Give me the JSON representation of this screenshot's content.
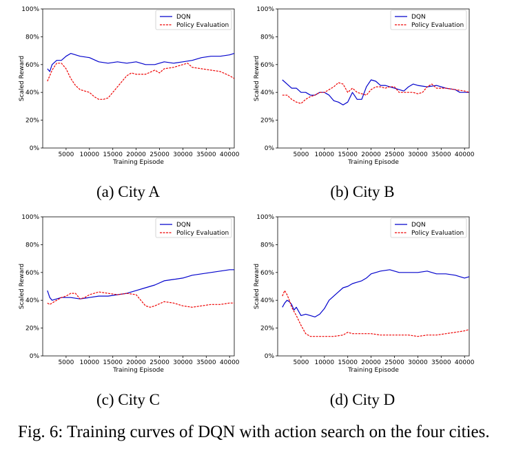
{
  "caption": "Fig. 6: Training curves of DQN with action search on the four cities.",
  "colors": {
    "dqn": "#0000cc",
    "policy_evaluation": "#ee0000"
  },
  "chart_data": [
    {
      "type": "line",
      "sublabel": "(a) City A",
      "xlabel": "Training Episode",
      "ylabel": "Scaled Reward",
      "xlim": [
        0,
        41000
      ],
      "ylim": [
        0,
        100
      ],
      "xticks": [
        "5000",
        "10000",
        "15000",
        "20000",
        "25000",
        "30000",
        "35000",
        "40000"
      ],
      "yticks": [
        "0%",
        "20%",
        "40%",
        "60%",
        "80%",
        "100%"
      ],
      "legend_position": "upper-right",
      "series": [
        {
          "name": "DQN",
          "style": "solid",
          "x": [
            1000,
            1500,
            2000,
            3000,
            4000,
            5000,
            6000,
            8000,
            10000,
            12000,
            14000,
            16000,
            18000,
            20000,
            22000,
            24000,
            26000,
            28000,
            30000,
            32000,
            34000,
            36000,
            38000,
            40000,
            41000
          ],
          "y": [
            57,
            55,
            60,
            63,
            63,
            66,
            68,
            66,
            65,
            62,
            61,
            62,
            61,
            62,
            60,
            60,
            62,
            61,
            62,
            63,
            65,
            66,
            66,
            67,
            68
          ]
        },
        {
          "name": "Policy Evaluation",
          "style": "dashed",
          "x": [
            1000,
            1500,
            2000,
            3000,
            4000,
            5000,
            6000,
            7000,
            8000,
            10000,
            11000,
            12000,
            13000,
            14000,
            15000,
            16000,
            17000,
            18000,
            19000,
            20000,
            22000,
            24000,
            25000,
            26000,
            28000,
            30000,
            31000,
            32000,
            34000,
            36000,
            38000,
            40000,
            41000
          ],
          "y": [
            48,
            52,
            56,
            61,
            61,
            57,
            50,
            45,
            42,
            40,
            37,
            35,
            35,
            36,
            40,
            44,
            48,
            52,
            54,
            53,
            53,
            56,
            54,
            57,
            58,
            60,
            61,
            58,
            57,
            56,
            55,
            52,
            50
          ]
        }
      ]
    },
    {
      "type": "line",
      "sublabel": "(b) City B",
      "xlabel": "Training Episode",
      "ylabel": "Scaled Reward",
      "xlim": [
        0,
        41000
      ],
      "ylim": [
        0,
        100
      ],
      "xticks": [
        "5000",
        "10000",
        "15000",
        "20000",
        "25000",
        "30000",
        "35000",
        "40000"
      ],
      "yticks": [
        "0%",
        "20%",
        "40%",
        "60%",
        "80%",
        "100%"
      ],
      "legend_position": "upper-right",
      "series": [
        {
          "name": "DQN",
          "style": "solid",
          "x": [
            1000,
            2000,
            3000,
            4000,
            5000,
            6000,
            7000,
            8000,
            9000,
            10000,
            11000,
            12000,
            13000,
            14000,
            15000,
            16000,
            17000,
            18000,
            19000,
            20000,
            21000,
            22000,
            23000,
            24000,
            25000,
            26000,
            27000,
            28000,
            29000,
            30000,
            32000,
            34000,
            36000,
            38000,
            39000,
            40000,
            41000
          ],
          "y": [
            49,
            46,
            43,
            43,
            40,
            40,
            38,
            38,
            40,
            40,
            38,
            34,
            33,
            31,
            33,
            40,
            35,
            35,
            44,
            49,
            48,
            45,
            45,
            44,
            43,
            42,
            41,
            44,
            46,
            45,
            44,
            45,
            43,
            42,
            40,
            40,
            40
          ]
        },
        {
          "name": "Policy Evaluation",
          "style": "dashed",
          "x": [
            1000,
            2000,
            3000,
            4000,
            5000,
            6000,
            7000,
            8000,
            9000,
            10000,
            11000,
            12000,
            13000,
            14000,
            15000,
            16000,
            17000,
            18000,
            19000,
            20000,
            21000,
            22000,
            23000,
            24000,
            25000,
            26000,
            27000,
            28000,
            29000,
            30000,
            31000,
            32000,
            33000,
            34000,
            36000,
            38000,
            40000,
            41000
          ],
          "y": [
            38,
            38,
            35,
            33,
            32,
            35,
            37,
            38,
            40,
            40,
            42,
            44,
            47,
            46,
            40,
            43,
            40,
            39,
            38,
            42,
            44,
            44,
            43,
            44,
            44,
            40,
            40,
            40,
            40,
            39,
            40,
            44,
            46,
            43,
            43,
            42,
            41,
            40
          ]
        }
      ]
    },
    {
      "type": "line",
      "sublabel": "(c) City C",
      "xlabel": "Training Episode",
      "ylabel": "Scaled Reward",
      "xlim": [
        0,
        41000
      ],
      "ylim": [
        0,
        100
      ],
      "xticks": [
        "5000",
        "10000",
        "15000",
        "20000",
        "25000",
        "30000",
        "35000",
        "40000"
      ],
      "yticks": [
        "0%",
        "20%",
        "40%",
        "60%",
        "80%",
        "100%"
      ],
      "legend_position": "upper-right",
      "series": [
        {
          "name": "DQN",
          "style": "solid",
          "x": [
            1000,
            1500,
            2000,
            3000,
            4000,
            5000,
            6000,
            8000,
            10000,
            12000,
            14000,
            16000,
            18000,
            20000,
            22000,
            24000,
            26000,
            28000,
            30000,
            32000,
            34000,
            36000,
            38000,
            40000,
            41000
          ],
          "y": [
            47,
            42,
            40,
            41,
            42,
            42,
            42,
            41,
            42,
            43,
            43,
            44,
            45,
            47,
            49,
            51,
            54,
            55,
            56,
            58,
            59,
            60,
            61,
            62,
            62
          ]
        },
        {
          "name": "Policy Evaluation",
          "style": "dashed",
          "x": [
            1000,
            1500,
            2000,
            3000,
            4000,
            5000,
            6000,
            7000,
            8000,
            9000,
            10000,
            12000,
            14000,
            16000,
            18000,
            20000,
            21000,
            22000,
            23000,
            24000,
            26000,
            28000,
            30000,
            32000,
            34000,
            36000,
            38000,
            40000,
            41000
          ],
          "y": [
            38,
            37,
            38,
            40,
            42,
            43,
            45,
            45,
            41,
            42,
            44,
            46,
            45,
            44,
            45,
            44,
            40,
            36,
            35,
            36,
            39,
            38,
            36,
            35,
            36,
            37,
            37,
            38,
            38
          ]
        }
      ]
    },
    {
      "type": "line",
      "sublabel": "(d) City D",
      "xlabel": "Training Episode",
      "ylabel": "Scaled Reward",
      "xlim": [
        0,
        41000
      ],
      "ylim": [
        0,
        100
      ],
      "xticks": [
        "5000",
        "10000",
        "15000",
        "20000",
        "25000",
        "30000",
        "35000",
        "40000"
      ],
      "yticks": [
        "0%",
        "20%",
        "40%",
        "60%",
        "80%",
        "100%"
      ],
      "legend_position": "upper-right",
      "series": [
        {
          "name": "DQN",
          "style": "solid",
          "x": [
            1000,
            1500,
            2000,
            2500,
            3000,
            3500,
            4000,
            5000,
            6000,
            7000,
            8000,
            9000,
            10000,
            11000,
            12000,
            13000,
            14000,
            15000,
            16000,
            17000,
            18000,
            19000,
            20000,
            22000,
            24000,
            26000,
            28000,
            30000,
            32000,
            34000,
            36000,
            38000,
            40000,
            41000
          ],
          "y": [
            35,
            38,
            40,
            39,
            37,
            33,
            35,
            29,
            30,
            29,
            28,
            30,
            34,
            40,
            43,
            46,
            49,
            50,
            52,
            53,
            54,
            56,
            59,
            61,
            62,
            60,
            60,
            60,
            61,
            59,
            59,
            58,
            56,
            57
          ]
        },
        {
          "name": "Policy Evaluation",
          "style": "dashed",
          "x": [
            1000,
            1500,
            2000,
            2500,
            3000,
            3500,
            4000,
            5000,
            6000,
            7000,
            8000,
            10000,
            12000,
            14000,
            15000,
            16000,
            18000,
            20000,
            22000,
            24000,
            26000,
            28000,
            30000,
            32000,
            34000,
            36000,
            38000,
            40000,
            41000
          ],
          "y": [
            43,
            47,
            44,
            40,
            35,
            32,
            29,
            22,
            16,
            14,
            14,
            14,
            14,
            15,
            17,
            16,
            16,
            16,
            15,
            15,
            15,
            15,
            14,
            15,
            15,
            16,
            17,
            18,
            19
          ]
        }
      ]
    }
  ]
}
